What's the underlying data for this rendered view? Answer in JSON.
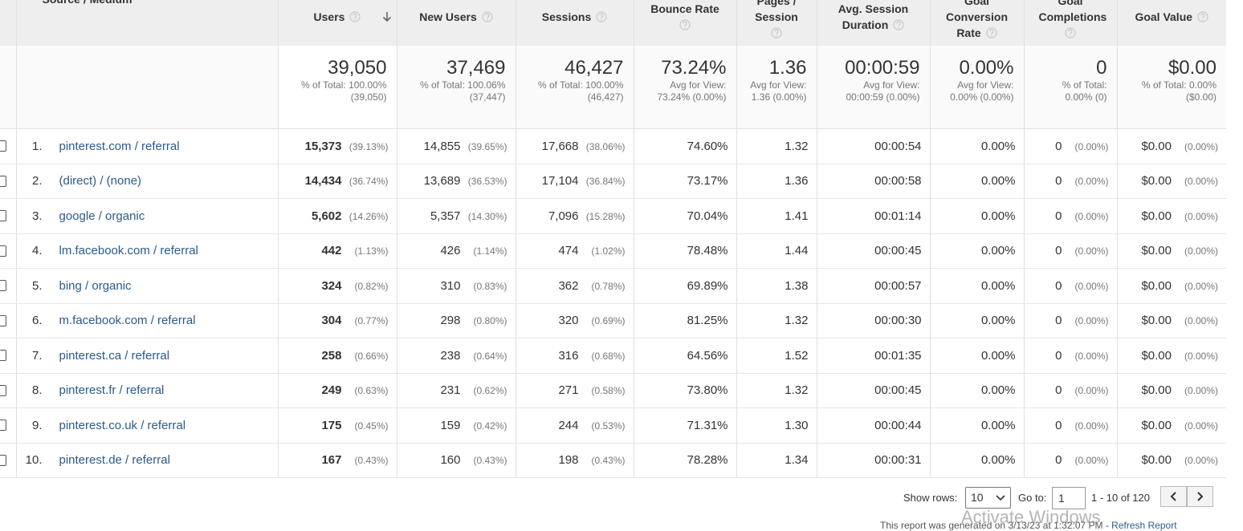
{
  "table": {
    "headers": {
      "source": "Source / Medium",
      "users": "Users",
      "new_users": "New Users",
      "sessions": "Sessions",
      "bounce_rate": "Bounce Rate",
      "pages_per_session": "Pages / Session",
      "avg_session_duration": "Avg. Session Duration",
      "goal_conversion_rate": "Goal Conversion Rate",
      "goal_completions": "Goal Completions",
      "goal_value": "Goal Value"
    },
    "totals": {
      "users": {
        "value": "39,050",
        "note": "% of Total: 100.00% (39,050)"
      },
      "new_users": {
        "value": "37,469",
        "note": "% of Total: 100.06% (37,447)"
      },
      "sessions": {
        "value": "46,427",
        "note": "% of Total: 100.00% (46,427)"
      },
      "bounce_rate": {
        "value": "73.24%",
        "note": "Avg for View: 73.24% (0.00%)"
      },
      "pages_per_session": {
        "value": "1.36",
        "note": "Avg for View: 1.36 (0.00%)"
      },
      "avg_session_duration": {
        "value": "00:00:59",
        "note": "Avg for View: 00:00:59 (0.00%)"
      },
      "goal_conversion_rate": {
        "value": "0.00%",
        "note": "Avg for View: 0.00% (0.00%)"
      },
      "goal_completions": {
        "value": "0",
        "note": "% of Total: 0.00% (0)"
      },
      "goal_value": {
        "value": "$0.00",
        "note": "% of Total: 0.00% ($0.00)"
      }
    },
    "rows": [
      {
        "rank": "1.",
        "source": "pinterest.com / referral",
        "users": {
          "value": "15,373",
          "pct": "(39.13%)"
        },
        "new_users": {
          "value": "14,855",
          "pct": "(39.65%)"
        },
        "sessions": {
          "value": "17,668",
          "pct": "(38.06%)"
        },
        "bounce_rate": "74.60%",
        "pages_per_session": "1.32",
        "avg_session_duration": "00:00:54",
        "goal_conversion_rate": "0.00%",
        "goal_completions": {
          "value": "0",
          "pct": "(0.00%)"
        },
        "goal_value": {
          "value": "$0.00",
          "pct": "(0.00%)"
        }
      },
      {
        "rank": "2.",
        "source": "(direct) / (none)",
        "users": {
          "value": "14,434",
          "pct": "(36.74%)"
        },
        "new_users": {
          "value": "13,689",
          "pct": "(36.53%)"
        },
        "sessions": {
          "value": "17,104",
          "pct": "(36.84%)"
        },
        "bounce_rate": "73.17%",
        "pages_per_session": "1.36",
        "avg_session_duration": "00:00:58",
        "goal_conversion_rate": "0.00%",
        "goal_completions": {
          "value": "0",
          "pct": "(0.00%)"
        },
        "goal_value": {
          "value": "$0.00",
          "pct": "(0.00%)"
        }
      },
      {
        "rank": "3.",
        "source": "google / organic",
        "users": {
          "value": "5,602",
          "pct": "(14.26%)"
        },
        "new_users": {
          "value": "5,357",
          "pct": "(14.30%)"
        },
        "sessions": {
          "value": "7,096",
          "pct": "(15.28%)"
        },
        "bounce_rate": "70.04%",
        "pages_per_session": "1.41",
        "avg_session_duration": "00:01:14",
        "goal_conversion_rate": "0.00%",
        "goal_completions": {
          "value": "0",
          "pct": "(0.00%)"
        },
        "goal_value": {
          "value": "$0.00",
          "pct": "(0.00%)"
        }
      },
      {
        "rank": "4.",
        "source": "lm.facebook.com / referral",
        "users": {
          "value": "442",
          "pct": "(1.13%)"
        },
        "new_users": {
          "value": "426",
          "pct": "(1.14%)"
        },
        "sessions": {
          "value": "474",
          "pct": "(1.02%)"
        },
        "bounce_rate": "78.48%",
        "pages_per_session": "1.44",
        "avg_session_duration": "00:00:45",
        "goal_conversion_rate": "0.00%",
        "goal_completions": {
          "value": "0",
          "pct": "(0.00%)"
        },
        "goal_value": {
          "value": "$0.00",
          "pct": "(0.00%)"
        }
      },
      {
        "rank": "5.",
        "source": "bing / organic",
        "users": {
          "value": "324",
          "pct": "(0.82%)"
        },
        "new_users": {
          "value": "310",
          "pct": "(0.83%)"
        },
        "sessions": {
          "value": "362",
          "pct": "(0.78%)"
        },
        "bounce_rate": "69.89%",
        "pages_per_session": "1.38",
        "avg_session_duration": "00:00:57",
        "goal_conversion_rate": "0.00%",
        "goal_completions": {
          "value": "0",
          "pct": "(0.00%)"
        },
        "goal_value": {
          "value": "$0.00",
          "pct": "(0.00%)"
        }
      },
      {
        "rank": "6.",
        "source": "m.facebook.com / referral",
        "users": {
          "value": "304",
          "pct": "(0.77%)"
        },
        "new_users": {
          "value": "298",
          "pct": "(0.80%)"
        },
        "sessions": {
          "value": "320",
          "pct": "(0.69%)"
        },
        "bounce_rate": "81.25%",
        "pages_per_session": "1.32",
        "avg_session_duration": "00:00:30",
        "goal_conversion_rate": "0.00%",
        "goal_completions": {
          "value": "0",
          "pct": "(0.00%)"
        },
        "goal_value": {
          "value": "$0.00",
          "pct": "(0.00%)"
        }
      },
      {
        "rank": "7.",
        "source": "pinterest.ca / referral",
        "users": {
          "value": "258",
          "pct": "(0.66%)"
        },
        "new_users": {
          "value": "238",
          "pct": "(0.64%)"
        },
        "sessions": {
          "value": "316",
          "pct": "(0.68%)"
        },
        "bounce_rate": "64.56%",
        "pages_per_session": "1.52",
        "avg_session_duration": "00:01:35",
        "goal_conversion_rate": "0.00%",
        "goal_completions": {
          "value": "0",
          "pct": "(0.00%)"
        },
        "goal_value": {
          "value": "$0.00",
          "pct": "(0.00%)"
        }
      },
      {
        "rank": "8.",
        "source": "pinterest.fr / referral",
        "users": {
          "value": "249",
          "pct": "(0.63%)"
        },
        "new_users": {
          "value": "231",
          "pct": "(0.62%)"
        },
        "sessions": {
          "value": "271",
          "pct": "(0.58%)"
        },
        "bounce_rate": "73.80%",
        "pages_per_session": "1.32",
        "avg_session_duration": "00:00:45",
        "goal_conversion_rate": "0.00%",
        "goal_completions": {
          "value": "0",
          "pct": "(0.00%)"
        },
        "goal_value": {
          "value": "$0.00",
          "pct": "(0.00%)"
        }
      },
      {
        "rank": "9.",
        "source": "pinterest.co.uk / referral",
        "users": {
          "value": "175",
          "pct": "(0.45%)"
        },
        "new_users": {
          "value": "159",
          "pct": "(0.42%)"
        },
        "sessions": {
          "value": "244",
          "pct": "(0.53%)"
        },
        "bounce_rate": "71.31%",
        "pages_per_session": "1.30",
        "avg_session_duration": "00:00:44",
        "goal_conversion_rate": "0.00%",
        "goal_completions": {
          "value": "0",
          "pct": "(0.00%)"
        },
        "goal_value": {
          "value": "$0.00",
          "pct": "(0.00%)"
        }
      },
      {
        "rank": "10.",
        "source": "pinterest.de / referral",
        "users": {
          "value": "167",
          "pct": "(0.43%)"
        },
        "new_users": {
          "value": "160",
          "pct": "(0.43%)"
        },
        "sessions": {
          "value": "198",
          "pct": "(0.43%)"
        },
        "bounce_rate": "78.28%",
        "pages_per_session": "1.34",
        "avg_session_duration": "00:00:31",
        "goal_conversion_rate": "0.00%",
        "goal_completions": {
          "value": "0",
          "pct": "(0.00%)"
        },
        "goal_value": {
          "value": "$0.00",
          "pct": "(0.00%)"
        }
      }
    ]
  },
  "footer": {
    "show_rows_label": "Show rows:",
    "show_rows_value": "10",
    "goto_label": "Go to:",
    "goto_value": "1",
    "range": "1 - 10 of 120",
    "report_note": "This report was generated on 3/13/23 at 1:32:07 PM - ",
    "refresh_link": "Refresh Report",
    "watermark": "Activate Windows"
  }
}
